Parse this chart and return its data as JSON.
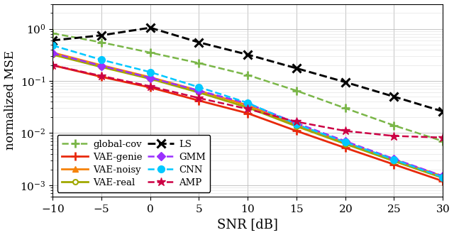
{
  "snr": [
    -10,
    -5,
    0,
    5,
    10,
    15,
    20,
    25,
    30
  ],
  "global_cov": [
    0.82,
    0.55,
    0.35,
    0.22,
    0.13,
    0.065,
    0.03,
    0.014,
    0.007
  ],
  "vae_genie": [
    0.2,
    0.12,
    0.075,
    0.042,
    0.024,
    0.011,
    0.0052,
    0.0025,
    0.0012
  ],
  "vae_noisy": [
    0.35,
    0.2,
    0.118,
    0.065,
    0.034,
    0.0145,
    0.0066,
    0.0031,
    0.00148
  ],
  "vae_real": [
    0.32,
    0.185,
    0.11,
    0.06,
    0.031,
    0.0135,
    0.0062,
    0.0029,
    0.00138
  ],
  "ls": [
    0.6,
    0.75,
    1.05,
    0.55,
    0.32,
    0.175,
    0.095,
    0.05,
    0.026
  ],
  "gmm": [
    0.34,
    0.195,
    0.115,
    0.065,
    0.037,
    0.0155,
    0.007,
    0.0032,
    0.0015
  ],
  "cnn": [
    0.48,
    0.255,
    0.148,
    0.076,
    0.038,
    0.0148,
    0.0067,
    0.0031,
    0.00142
  ],
  "amp": [
    0.2,
    0.125,
    0.079,
    0.047,
    0.029,
    0.0165,
    0.011,
    0.0088,
    0.0082
  ],
  "colors": {
    "global_cov": "#7ab648",
    "vae_genie": "#e8290b",
    "vae_noisy": "#f5820a",
    "vae_real": "#a0a800",
    "ls": "#000000",
    "gmm": "#9b30ff",
    "cnn": "#00c8ff",
    "amp": "#cc0044"
  },
  "xlabel": "SNR [dB]",
  "ylabel": "normalized MSE",
  "ylim": [
    0.0006,
    3.0
  ],
  "xlim": [
    -10,
    30
  ],
  "xticks": [
    -10,
    -5,
    0,
    5,
    10,
    15,
    20,
    25,
    30
  ]
}
